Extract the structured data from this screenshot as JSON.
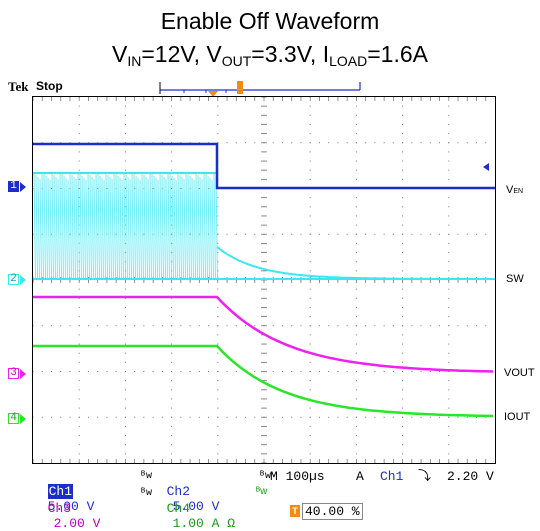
{
  "title": {
    "line1": "Enable Off Waveform",
    "vin_label": "V",
    "vin_sub": "IN",
    "vin_value": "=12V, ",
    "vout_label": "V",
    "vout_sub": "OUT",
    "vout_value": "=3.3V, ",
    "iload_label": "I",
    "iload_sub": "LOAD",
    "iload_value": "=1.6A"
  },
  "scope": {
    "brand": "Tek",
    "run_state": "Stop",
    "trigger_marker": "T",
    "channel_markers": [
      "1",
      "2",
      "3",
      "4"
    ],
    "signal_labels": {
      "ven": "V",
      "ven_sub": "EN",
      "sw": "SW",
      "vout": "VOUT",
      "iout": "IOUT"
    }
  },
  "status": {
    "ch1_label": "Ch1",
    "ch1_scale": "5.00 V",
    "ch2_label": "Ch2",
    "ch2_scale": "5.00 V",
    "timebase": "M 100µs",
    "trigger_mode": "A",
    "trig_source": "Ch1",
    "trig_slope": "⤵",
    "trig_level": "2.20 V",
    "ch3_label": "Ch3",
    "ch3_scale": "2.00 V",
    "ch4_label": "Ch4",
    "ch4_scale": "1.00 A Ω",
    "trigger_position": "40.00 %"
  },
  "colors": {
    "ch1": "#1c2dc8",
    "ch2": "#3fe6f0",
    "ch3": "#f020f0",
    "ch4": "#28e628",
    "trigger": "#f08c14"
  }
}
